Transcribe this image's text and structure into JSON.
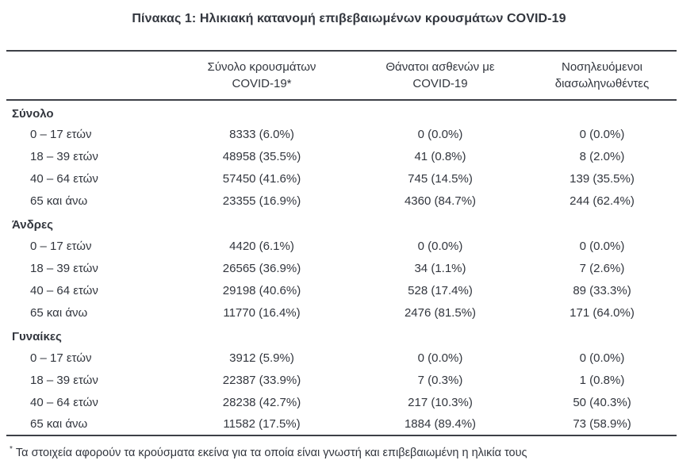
{
  "title": "Πίνακας 1: Ηλικιακή κατανομή επιβεβαιωμένων κρουσμάτων COVID-19",
  "table": {
    "columns": [
      {
        "label_line1": "Σύνολο κρουσμάτων",
        "label_line2": "COVID-19*"
      },
      {
        "label_line1": "Θάνατοι ασθενών με",
        "label_line2": "COVID-19"
      },
      {
        "label_line1": "Νοσηλευόμενοι",
        "label_line2": "διασωληνωθέντες"
      }
    ],
    "sections": [
      {
        "name": "Σύνολο",
        "rows": [
          {
            "label": "0 – 17 ετών",
            "cases": "8333 (6.0%)",
            "deaths": "0 (0.0%)",
            "intubated": "0 (0.0%)"
          },
          {
            "label": "18 – 39 ετών",
            "cases": "48958 (35.5%)",
            "deaths": "41 (0.8%)",
            "intubated": "8 (2.0%)"
          },
          {
            "label": "40 – 64 ετών",
            "cases": "57450 (41.6%)",
            "deaths": "745 (14.5%)",
            "intubated": "139 (35.5%)"
          },
          {
            "label": "65 και άνω",
            "cases": "23355 (16.9%)",
            "deaths": "4360 (84.7%)",
            "intubated": "244 (62.4%)"
          }
        ]
      },
      {
        "name": "Άνδρες",
        "rows": [
          {
            "label": "0 – 17 ετών",
            "cases": "4420 (6.1%)",
            "deaths": "0 (0.0%)",
            "intubated": "0 (0.0%)"
          },
          {
            "label": "18 – 39 ετών",
            "cases": "26565 (36.9%)",
            "deaths": "34 (1.1%)",
            "intubated": "7 (2.6%)"
          },
          {
            "label": "40 – 64 ετών",
            "cases": "29198 (40.6%)",
            "deaths": "528 (17.4%)",
            "intubated": "89 (33.3%)"
          },
          {
            "label": "65 και άνω",
            "cases": "11770 (16.4%)",
            "deaths": "2476 (81.5%)",
            "intubated": "171 (64.0%)"
          }
        ]
      },
      {
        "name": "Γυναίκες",
        "rows": [
          {
            "label": "0 – 17 ετών",
            "cases": "3912 (5.9%)",
            "deaths": "0 (0.0%)",
            "intubated": "0 (0.0%)"
          },
          {
            "label": "18 – 39 ετών",
            "cases": "22387 (33.9%)",
            "deaths": "7 (0.3%)",
            "intubated": "1 (0.8%)"
          },
          {
            "label": "40 – 64 ετών",
            "cases": "28238 (42.7%)",
            "deaths": "217 (10.3%)",
            "intubated": "50 (40.3%)"
          },
          {
            "label": "65 και άνω",
            "cases": "11582 (17.5%)",
            "deaths": "1884 (89.4%)",
            "intubated": "73 (58.9%)"
          }
        ]
      }
    ]
  },
  "footnote": {
    "marker": "*",
    "text": "Τα στοιχεία αφορούν τα κρούσματα εκείνα για τα οποία είναι γνωστή και επιβεβαιωμένη η ηλικία τους"
  },
  "colors": {
    "text": "#32363e",
    "border": "#3d4047",
    "background": "#ffffff"
  }
}
